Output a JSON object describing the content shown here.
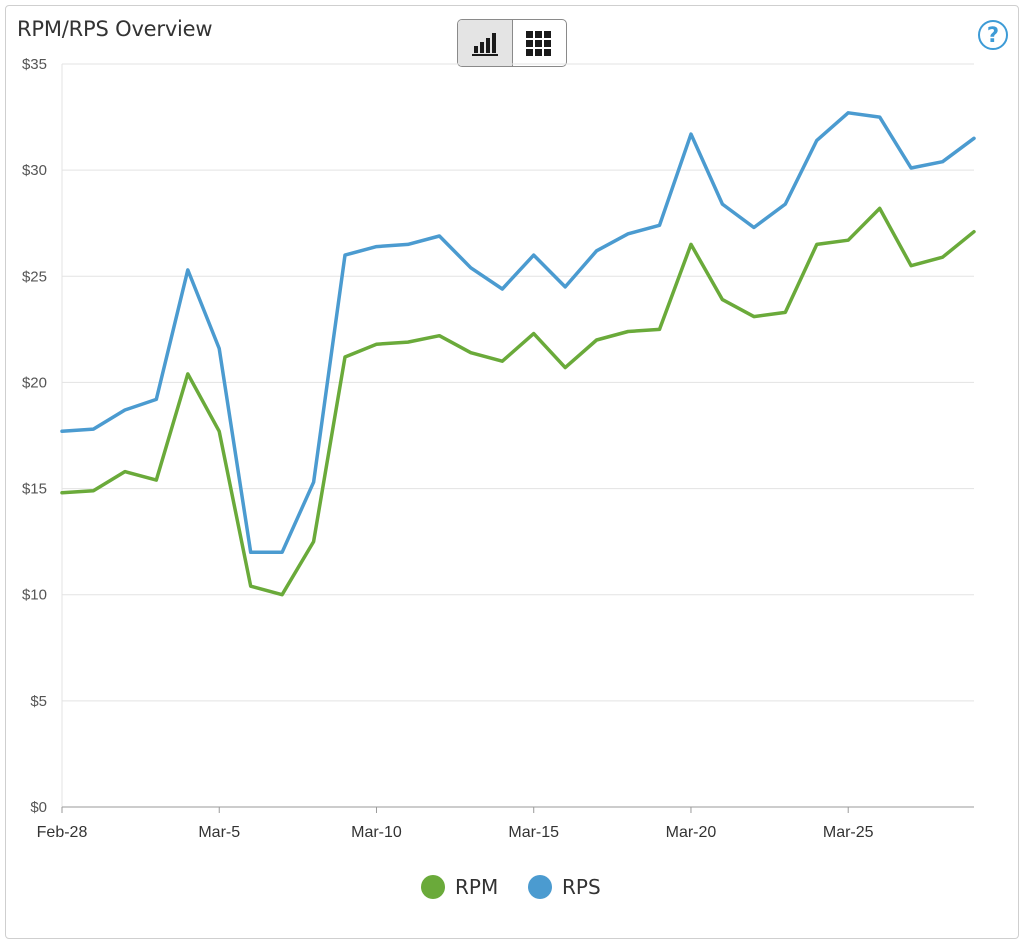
{
  "header": {
    "title": "RPM/RPS Overview",
    "help_label": "?"
  },
  "toggle": {
    "buttons": [
      {
        "icon": "bar-chart-icon",
        "active": true
      },
      {
        "icon": "grid-table-icon",
        "active": false
      }
    ]
  },
  "colors": {
    "rpm": "#6aaa3a",
    "rps": "#4b9bd0",
    "grid": "#e3e3e3",
    "axis": "#9a9a9a"
  },
  "chart_data": {
    "type": "line",
    "title": "RPM/RPS Overview",
    "xlabel": "",
    "ylabel": "",
    "x": [
      "Feb-28",
      "Mar-1",
      "Mar-2",
      "Mar-3",
      "Mar-4",
      "Mar-5",
      "Mar-6",
      "Mar-7",
      "Mar-8",
      "Mar-9",
      "Mar-10",
      "Mar-11",
      "Mar-12",
      "Mar-13",
      "Mar-14",
      "Mar-15",
      "Mar-16",
      "Mar-17",
      "Mar-18",
      "Mar-19",
      "Mar-20",
      "Mar-21",
      "Mar-22",
      "Mar-23",
      "Mar-24",
      "Mar-25",
      "Mar-26",
      "Mar-27",
      "Mar-28",
      "Mar-29"
    ],
    "x_tick_labels": [
      "Feb-28",
      "Mar-5",
      "Mar-10",
      "Mar-15",
      "Mar-20",
      "Mar-25"
    ],
    "x_tick_indices": [
      0,
      5,
      10,
      15,
      20,
      25
    ],
    "y_ticks": [
      0,
      5,
      10,
      15,
      20,
      25,
      30,
      35
    ],
    "y_tick_labels": [
      "$0",
      "$5",
      "$10",
      "$15",
      "$20",
      "$25",
      "$30",
      "$35"
    ],
    "ylim": [
      0,
      35
    ],
    "grid": true,
    "legend_position": "bottom-center",
    "series": [
      {
        "name": "RPM",
        "color": "#6aaa3a",
        "values": [
          14.8,
          14.9,
          15.8,
          15.4,
          20.4,
          17.7,
          10.4,
          10.0,
          12.5,
          21.2,
          21.8,
          21.9,
          22.2,
          21.4,
          21.0,
          22.3,
          20.7,
          22.0,
          22.4,
          22.5,
          26.5,
          23.9,
          23.1,
          23.3,
          26.5,
          26.7,
          28.2,
          25.5,
          25.9,
          27.1
        ]
      },
      {
        "name": "RPS",
        "color": "#4b9bd0",
        "values": [
          17.7,
          17.8,
          18.7,
          19.2,
          25.3,
          21.6,
          12.0,
          12.0,
          15.3,
          26.0,
          26.4,
          26.5,
          26.9,
          25.4,
          24.4,
          26.0,
          24.5,
          26.2,
          27.0,
          27.4,
          31.7,
          28.4,
          27.3,
          28.4,
          31.4,
          32.7,
          32.5,
          30.1,
          30.4,
          31.5
        ]
      }
    ]
  }
}
